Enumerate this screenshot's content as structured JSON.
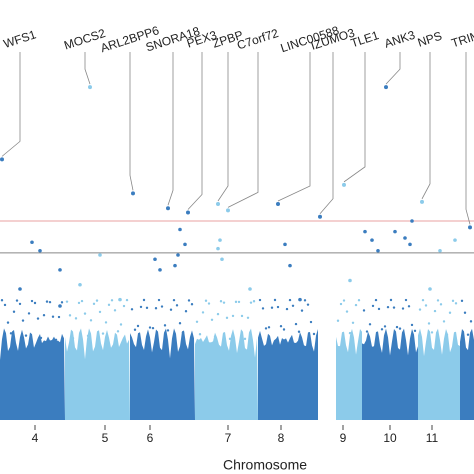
{
  "chart_data": {
    "type": "manhattan",
    "x_label": "Chromosome",
    "xlim": [
      0,
      474
    ],
    "ylim": [
      0,
      20
    ],
    "xticks": [
      {
        "value": 35,
        "label": "4"
      },
      {
        "value": 105,
        "label": "5"
      },
      {
        "value": 150,
        "label": "6"
      },
      {
        "value": 228,
        "label": "7"
      },
      {
        "value": 281,
        "label": "8"
      },
      {
        "value": 343,
        "label": "9"
      },
      {
        "value": 390,
        "label": "10"
      },
      {
        "value": 432,
        "label": "11"
      }
    ],
    "chromosomes": [
      {
        "start": 0,
        "end": 65,
        "color": "#3b7dbf"
      },
      {
        "start": 65,
        "end": 130,
        "color": "#8ccbea"
      },
      {
        "start": 130,
        "end": 195,
        "color": "#3b7dbf"
      },
      {
        "start": 195,
        "end": 258,
        "color": "#8ccbea"
      },
      {
        "start": 258,
        "end": 318,
        "color": "#3b7dbf"
      },
      {
        "start": 336,
        "end": 362,
        "color": "#8ccbea"
      },
      {
        "start": 362,
        "end": 418,
        "color": "#3b7dbf"
      },
      {
        "start": 418,
        "end": 460,
        "color": "#8ccbea"
      },
      {
        "start": 460,
        "end": 474,
        "color": "#3b7dbf"
      }
    ],
    "thresholds": [
      {
        "value": 9.6,
        "color": "#e8a0a0"
      },
      {
        "value": 8.1,
        "color": "#888888"
      }
    ],
    "annotations": [
      {
        "text": "WFS1",
        "x": 2,
        "y": 12.5
      },
      {
        "text": "MOCS2",
        "x": 90,
        "y": 15.9
      },
      {
        "text": "ARL2BPP6",
        "x": 133,
        "y": 10.9
      },
      {
        "text": "SNORA18",
        "x": 168,
        "y": 10.2
      },
      {
        "text": "PEX3",
        "x": 188,
        "y": 10.0
      },
      {
        "text": "ZPBP",
        "x": 218,
        "y": 10.4
      },
      {
        "text": "C7orf72",
        "x": 228,
        "y": 10.1
      },
      {
        "text": "LINC00588",
        "x": 278,
        "y": 10.4
      },
      {
        "text": "IZUMO3",
        "x": 320,
        "y": 9.8
      },
      {
        "text": "TLE1",
        "x": 344,
        "y": 11.3
      },
      {
        "text": "ANK3",
        "x": 386,
        "y": 15.9
      },
      {
        "text": "NPS",
        "x": 422,
        "y": 10.5
      },
      {
        "text": "TRIM",
        "x": 470,
        "y": 9.3
      }
    ],
    "points": {
      "x": [
        32,
        40,
        100,
        60,
        155,
        180,
        185,
        178,
        175,
        160,
        220,
        218,
        222,
        285,
        290,
        365,
        372,
        378,
        395,
        410,
        405,
        412,
        440,
        455,
        20,
        80,
        120,
        250,
        300,
        350,
        430,
        60
      ],
      "y": [
        8.6,
        8.2,
        8.0,
        7.3,
        7.8,
        9.2,
        8.5,
        8.0,
        7.5,
        7.3,
        8.7,
        8.3,
        7.8,
        8.5,
        7.5,
        9.1,
        8.7,
        8.2,
        9.1,
        8.5,
        8.8,
        9.6,
        8.2,
        8.7,
        6.4,
        6.6,
        5.9,
        6.4,
        5.9,
        6.8,
        6.4,
        5.6
      ]
    }
  }
}
